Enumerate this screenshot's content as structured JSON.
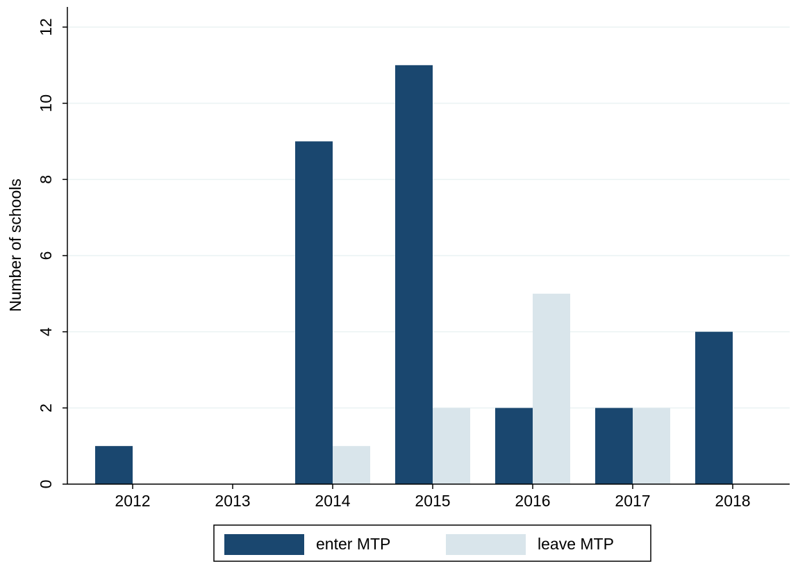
{
  "chart_data": {
    "type": "bar",
    "y_label": "Number of schools",
    "categories": [
      "2012",
      "2013",
      "2014",
      "2015",
      "2016",
      "2017",
      "2018"
    ],
    "series": [
      {
        "name": "enter MTP",
        "color": "#1a476f",
        "values": [
          1,
          0,
          9,
          11,
          2,
          2,
          4
        ]
      },
      {
        "name": "leave MTP",
        "color": "#d9e5eb",
        "values": [
          0,
          0,
          1,
          2,
          5,
          2,
          0
        ]
      }
    ],
    "ylim": [
      0,
      12
    ],
    "yticks": [
      0,
      2,
      4,
      6,
      8,
      10,
      12
    ],
    "grid": true,
    "legend": "bottom"
  }
}
